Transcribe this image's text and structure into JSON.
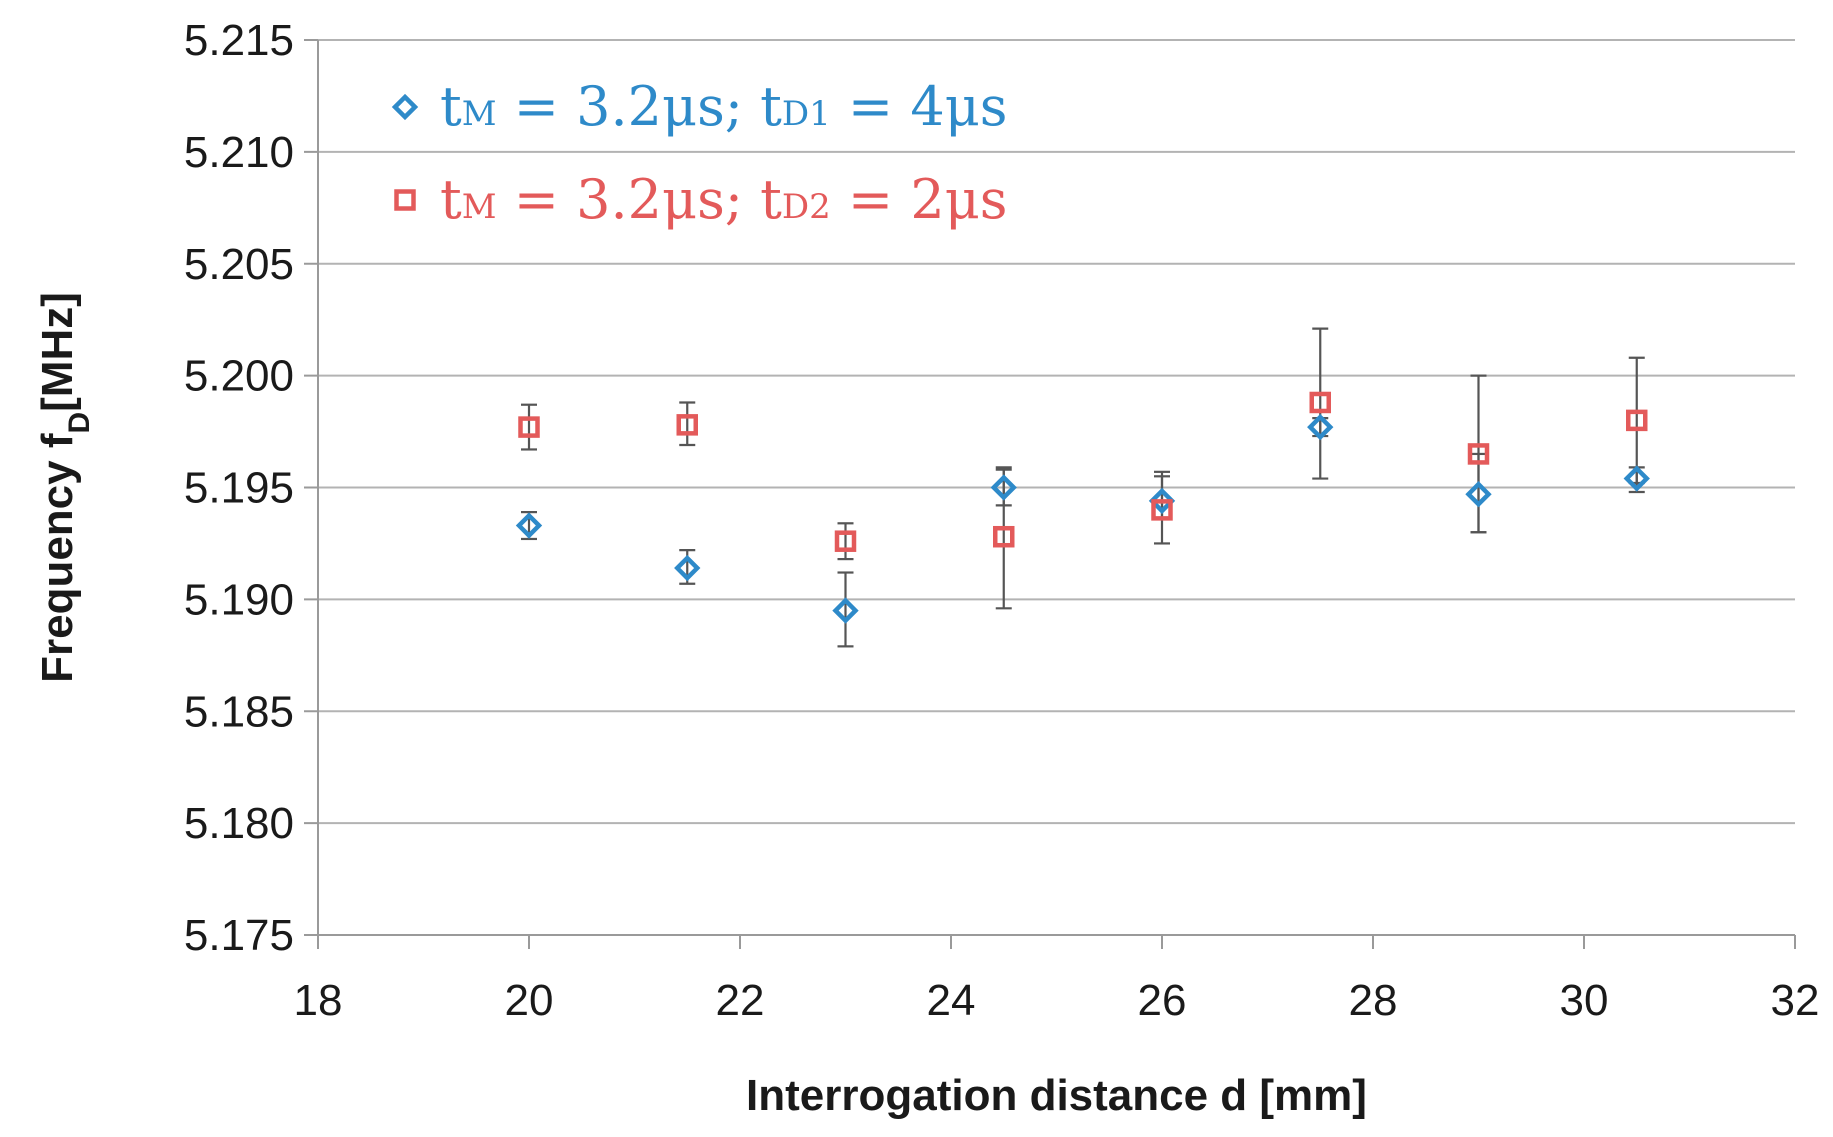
{
  "chart_data": {
    "type": "scatter",
    "title": "",
    "xlabel": "Interrogation distance d [mm]",
    "ylabel_main": "Frequency f",
    "ylabel_sub": "D",
    "ylabel_unit": "[MHz]",
    "xlim": [
      18,
      32
    ],
    "ylim": [
      5.175,
      5.215
    ],
    "x_ticks": [
      18,
      20,
      22,
      24,
      26,
      28,
      30,
      32
    ],
    "y_ticks": [
      5.175,
      5.18,
      5.185,
      5.19,
      5.195,
      5.2,
      5.205,
      5.21,
      5.215
    ],
    "y_tick_labels": [
      "5.175",
      "5.180",
      "5.185",
      "5.190",
      "5.195",
      "5.200",
      "5.205",
      "5.210",
      "5.215"
    ],
    "grid": "horizontal",
    "legend_position": "top-left",
    "series": [
      {
        "name": "tM = 3.2μs; tD1 = 4μs",
        "legend": {
          "t1": "t",
          "s1": "M",
          "mid": " = 3.2μs; t",
          "s2": "D1",
          "end": " = 4μs"
        },
        "marker": "diamond",
        "color": "#2e8ac9",
        "x": [
          20,
          21.5,
          23,
          24.5,
          26,
          27.5,
          29,
          30.5
        ],
        "y": [
          5.1933,
          5.1914,
          5.1895,
          5.195,
          5.1944,
          5.1977,
          5.1947,
          5.1954
        ],
        "err_low": [
          5.1927,
          5.1907,
          5.1879,
          5.1942,
          5.1936,
          5.1973,
          5.193,
          5.1948
        ],
        "err_high": [
          5.1939,
          5.1922,
          5.1912,
          5.1958,
          5.1957,
          5.1981,
          5.1965,
          5.1959
        ]
      },
      {
        "name": "tM = 3.2μs; tD2 = 2μs",
        "legend": {
          "t1": "t",
          "s1": "M",
          "mid": " = 3.2μs; t",
          "s2": "D2",
          "end": " = 2μs"
        },
        "marker": "square",
        "color": "#e35a5a",
        "x": [
          20,
          21.5,
          23,
          24.5,
          26,
          27.5,
          29,
          30.5
        ],
        "y": [
          5.1977,
          5.1978,
          5.1926,
          5.1928,
          5.194,
          5.1988,
          5.1965,
          5.198
        ],
        "err_low": [
          5.1967,
          5.1969,
          5.1918,
          5.1896,
          5.1925,
          5.1954,
          5.193,
          5.1952
        ],
        "err_high": [
          5.1987,
          5.1988,
          5.1934,
          5.1959,
          5.1955,
          5.2021,
          5.2,
          5.2008
        ]
      }
    ]
  }
}
